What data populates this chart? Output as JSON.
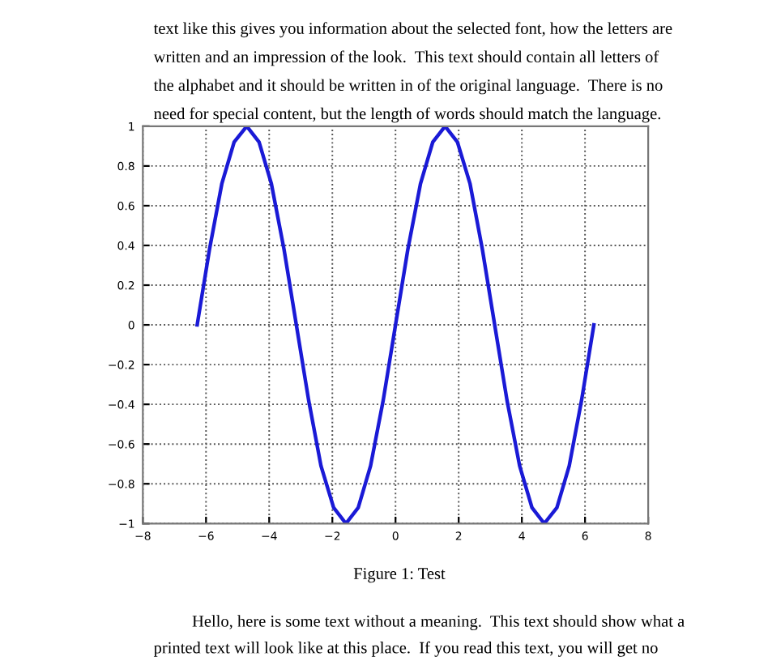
{
  "chart_data": {
    "type": "line",
    "x": [
      -6.28,
      -5.89,
      -5.5,
      -5.11,
      -4.71,
      -4.32,
      -3.93,
      -3.53,
      -3.14,
      -2.75,
      -2.36,
      -1.96,
      -1.57,
      -1.18,
      -0.79,
      -0.39,
      0,
      0.39,
      0.79,
      1.18,
      1.57,
      1.96,
      2.36,
      2.75,
      3.14,
      3.53,
      3.93,
      4.32,
      4.71,
      5.11,
      5.5,
      5.89,
      6.28
    ],
    "series": [
      {
        "color": "#1a1ad6",
        "values": [
          0,
          0.38,
          0.71,
          0.92,
          1,
          0.92,
          0.71,
          0.38,
          0,
          -0.38,
          -0.71,
          -0.92,
          -1,
          -0.92,
          -0.71,
          -0.38,
          0,
          0.38,
          0.71,
          0.92,
          1,
          0.92,
          0.71,
          0.38,
          0,
          -0.38,
          -0.71,
          -0.92,
          -1,
          -0.92,
          -0.71,
          -0.38,
          0
        ]
      }
    ],
    "xlim": [
      -8,
      8
    ],
    "xticks": [
      -8,
      -6,
      -4,
      -2,
      0,
      2,
      4,
      6,
      8
    ],
    "ylim": [
      -1,
      1
    ],
    "yticks": [
      -1,
      -0.8,
      -0.6,
      -0.4,
      -0.2,
      0,
      0.2,
      0.4,
      0.6,
      0.8,
      1
    ],
    "grid": true,
    "line_style": "solid",
    "marker": "none",
    "annotations": [
      "text like this gives you information about the selected font, how the letters are",
      "written and an impression of the look.  This text should contain all letters of",
      "the alphabet and it should be written in of the original language.  There is no",
      "need for special content, but the length of words should match the language.",
      "Figure 1: Test",
      "Hello, here is some text without a meaning.  This text should show what a",
      "printed text will look like at this place.  If you read this text, you will get no"
    ]
  }
}
